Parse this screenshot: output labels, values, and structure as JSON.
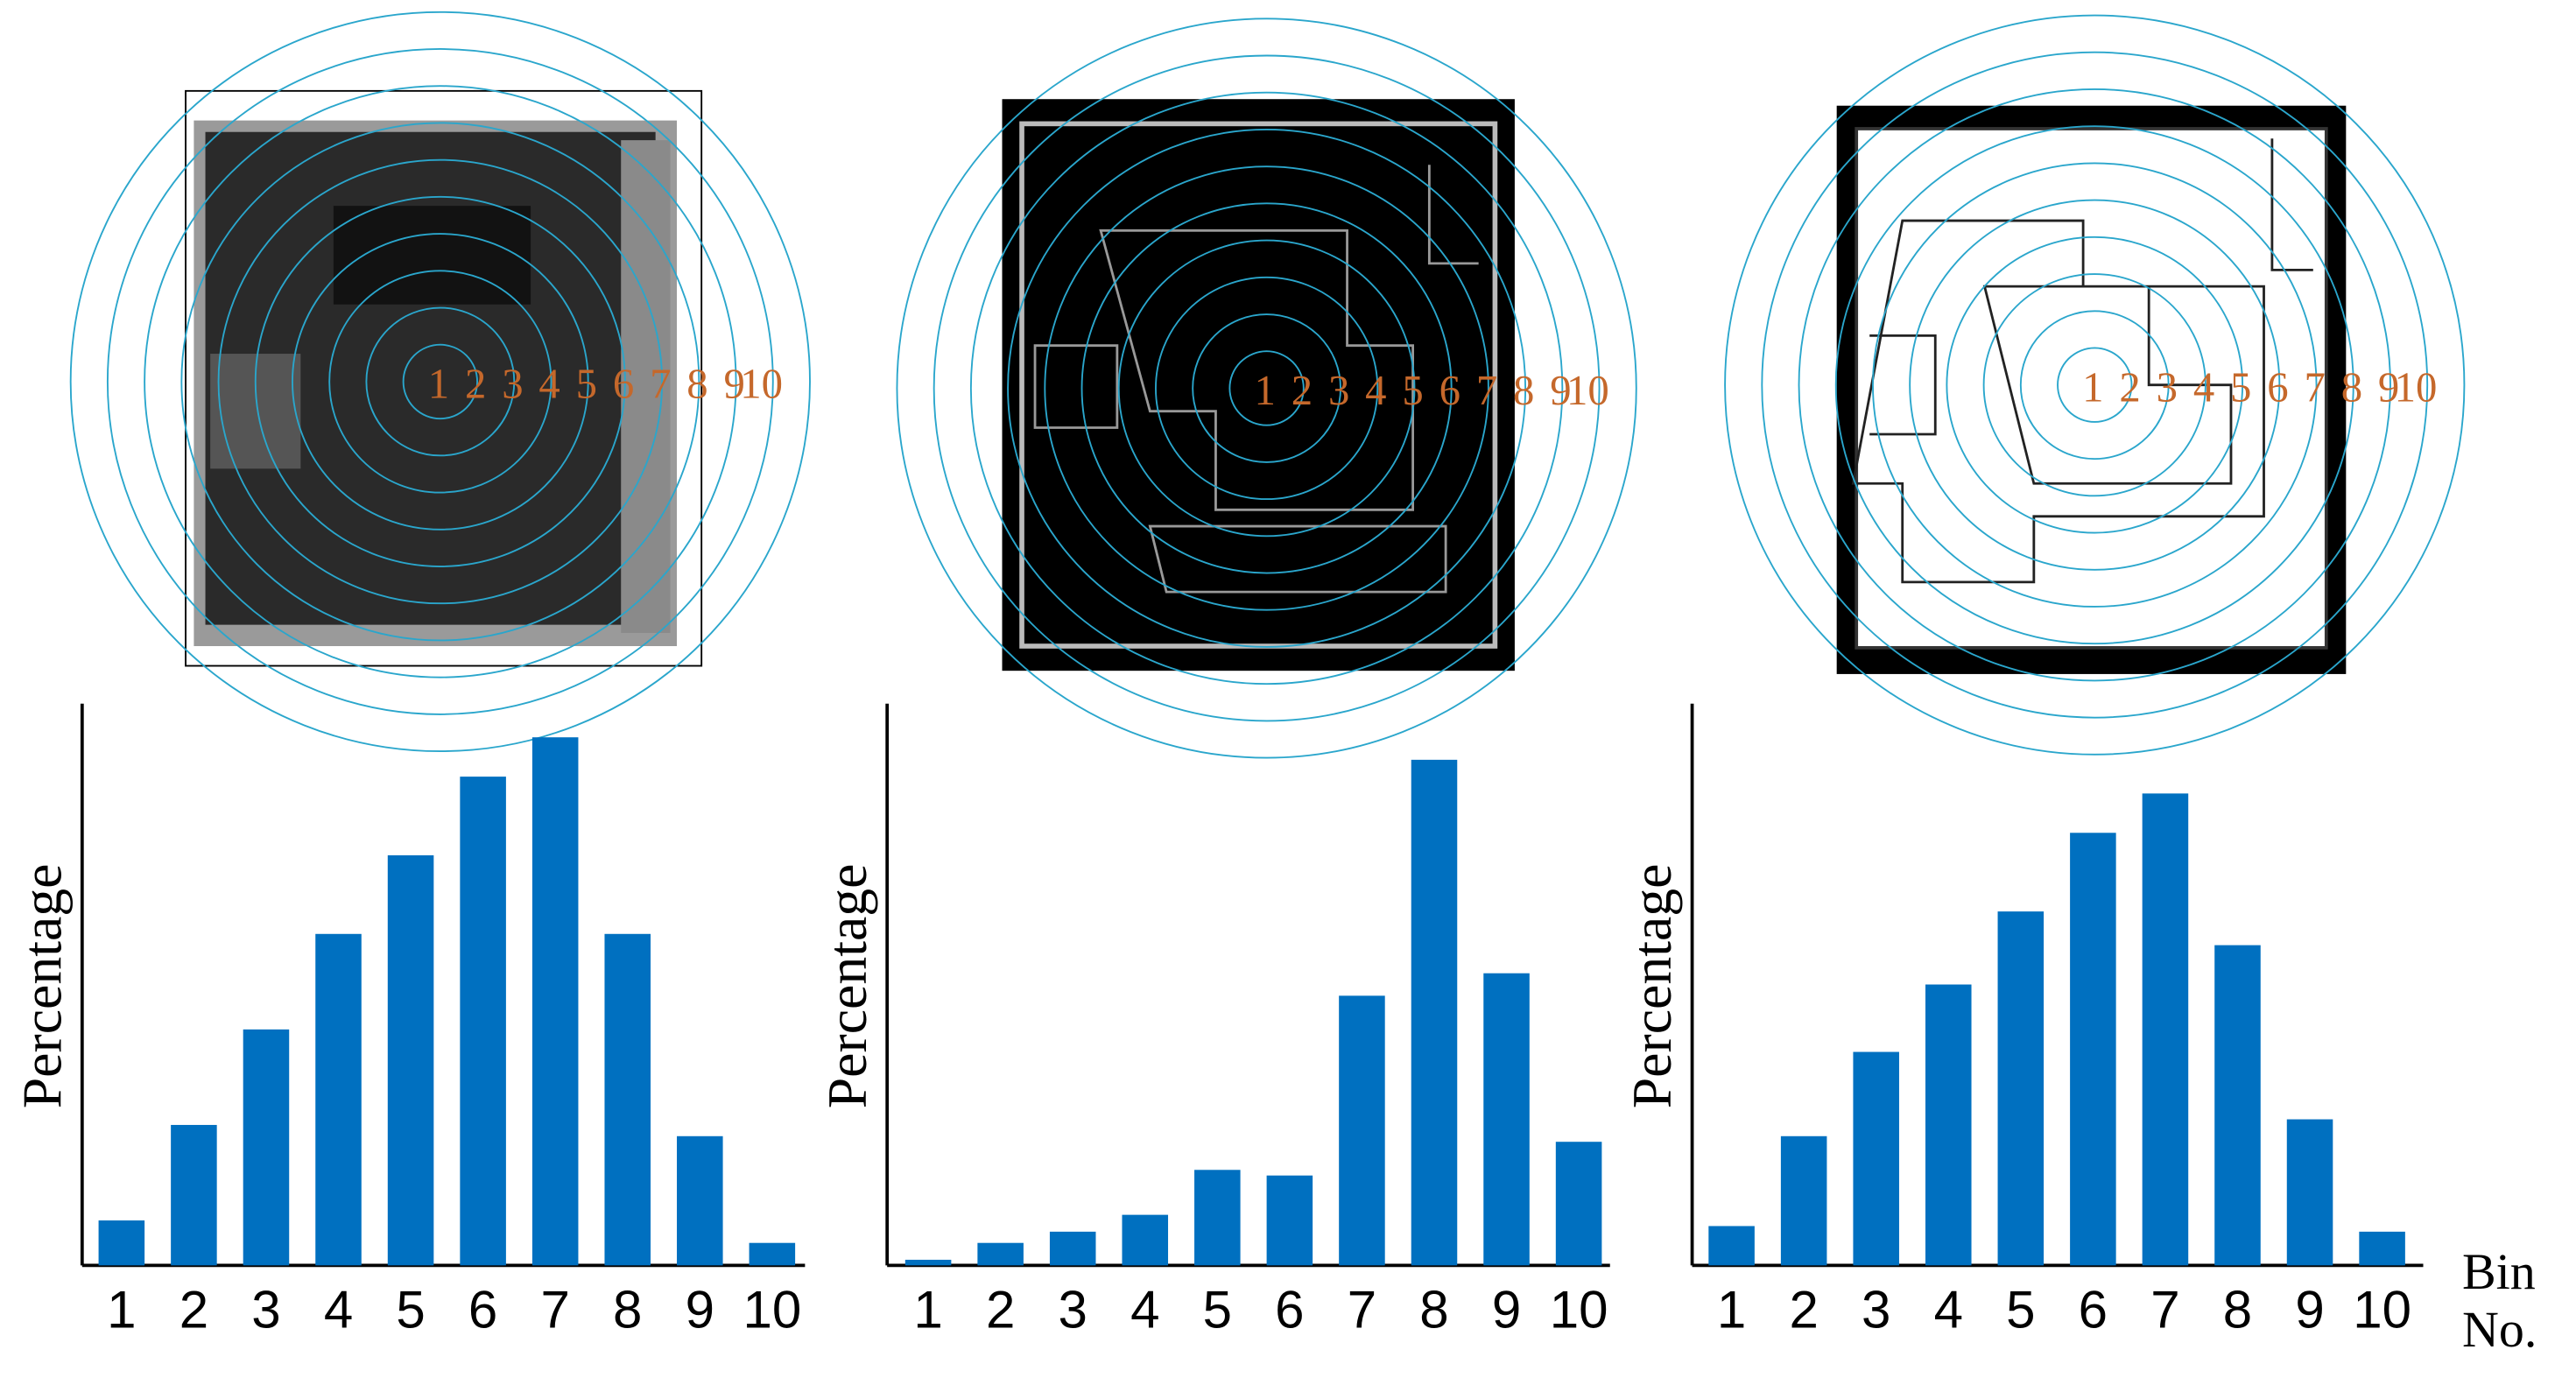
{
  "chart_data": [
    {
      "type": "bar",
      "y_label": "Percentage",
      "color": "#0070c0",
      "ring_labels": [
        1,
        2,
        3,
        4,
        5,
        6,
        7,
        8,
        9,
        10
      ],
      "categories": [
        "1",
        "2",
        "3",
        "4",
        "5",
        "6",
        "7",
        "8",
        "9",
        "10"
      ],
      "values": [
        8,
        25,
        42,
        59,
        73,
        87,
        94,
        59,
        23,
        4
      ],
      "ylim": [
        0,
        100
      ]
    },
    {
      "type": "bar",
      "y_label": "Percentage",
      "color": "#0070c0",
      "ring_labels": [
        1,
        2,
        3,
        4,
        5,
        6,
        7,
        8,
        9,
        10
      ],
      "categories": [
        "1",
        "2",
        "3",
        "4",
        "5",
        "6",
        "7",
        "8",
        "9",
        "10"
      ],
      "values": [
        1,
        4,
        6,
        9,
        17,
        16,
        48,
        90,
        52,
        22
      ],
      "ylim": [
        0,
        100
      ]
    },
    {
      "type": "bar",
      "y_label": "Percentage",
      "color": "#0070c0",
      "x_label": "Bin No.",
      "ring_labels": [
        1,
        2,
        3,
        4,
        5,
        6,
        7,
        8,
        9,
        10
      ],
      "categories": [
        "1",
        "2",
        "3",
        "4",
        "5",
        "6",
        "7",
        "8",
        "9",
        "10"
      ],
      "values": [
        7,
        23,
        38,
        50,
        63,
        77,
        84,
        57,
        26,
        6
      ],
      "ylim": [
        0,
        100
      ]
    }
  ]
}
